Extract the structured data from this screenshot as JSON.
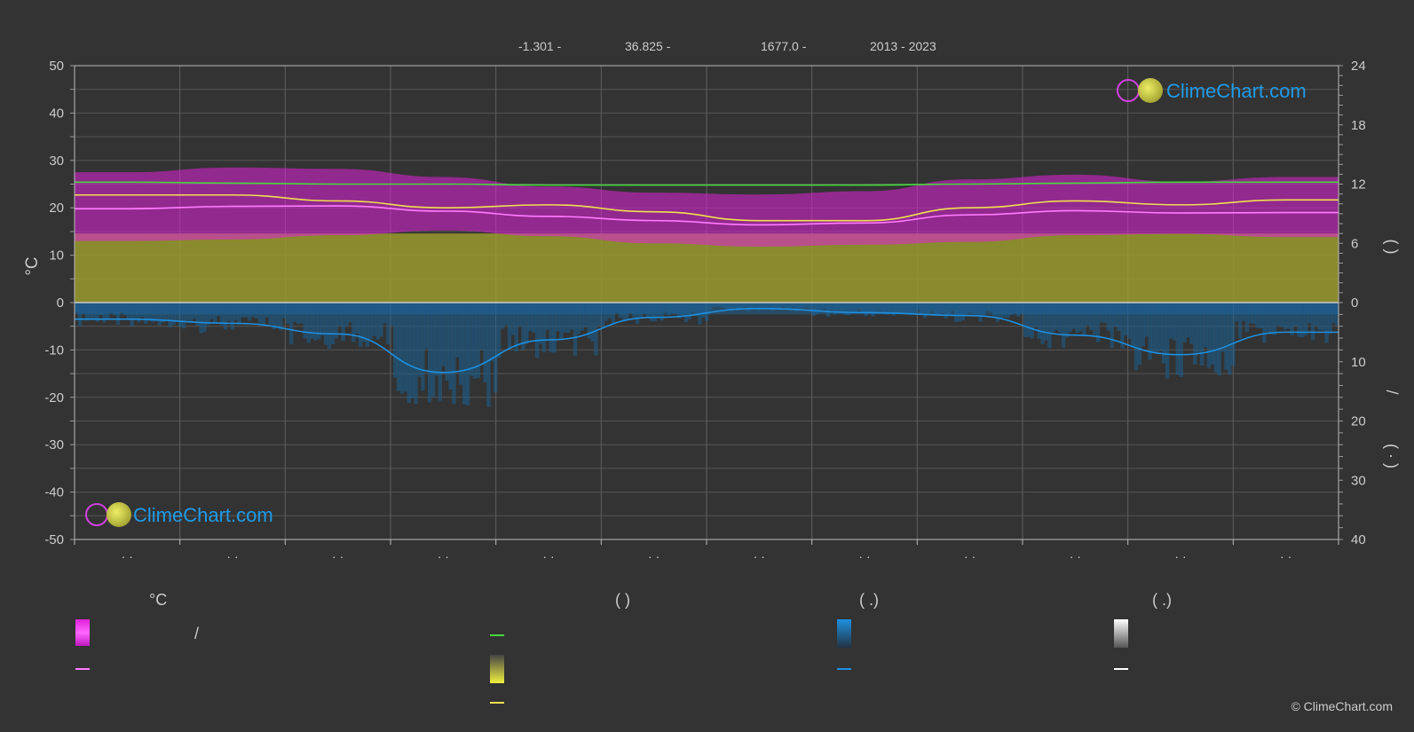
{
  "header": {
    "lat": "-1.301 -",
    "lon": "36.825 -",
    "elevation": "1677.0 -",
    "years": "2013 - 2023"
  },
  "logo_text": "ClimeChart.com",
  "copyright": "© ClimeChart.com",
  "colors": {
    "background": "#333333",
    "sunshine": "#9a9a2e",
    "daylight": "#44d93a",
    "temp_mean": "#ff7bff",
    "temp_range": "#e020d8",
    "sunshine_mean": "#f0e050",
    "precip": "#1e90e0",
    "logo_text": "#1e9be8"
  },
  "legend": {
    "temp_header": "°C",
    "sun_header": "(          )",
    "rain_header": "(   .)",
    "snow_header": "(   .)",
    "slash": "/"
  },
  "chart_data": {
    "type": "area",
    "ylabel_left": "°C",
    "ylim_left": [
      -50,
      50
    ],
    "left_ticks": [
      "50",
      "40",
      "30",
      "20",
      "10",
      "0",
      "-10",
      "-20",
      "-30",
      "-40",
      "-50"
    ],
    "right_ticks_upper": [
      "24",
      "18",
      "12",
      "6",
      "0"
    ],
    "right_ticks_lower": [
      "10",
      "20",
      "30",
      "40"
    ],
    "right_label_upper": "(   )",
    "right_label_lower": "/",
    "months": 12,
    "month_tick_labels": [
      "· ·",
      "· ·",
      "· ·",
      "· ·",
      "· ·",
      "· ·",
      "· ·",
      "· ·",
      "· ·",
      "· ·",
      "· ·",
      "· ·"
    ],
    "series": [
      {
        "key": "daylight_hours",
        "values": [
          12.2,
          12.1,
          12.0,
          12.0,
          11.9,
          11.9,
          11.9,
          11.9,
          12.0,
          12.1,
          12.2,
          12.2
        ]
      },
      {
        "key": "sunshine_hours",
        "values": [
          10.9,
          10.9,
          10.3,
          9.6,
          9.9,
          9.2,
          8.3,
          8.3,
          9.6,
          10.3,
          9.9,
          10.4
        ]
      },
      {
        "key": "temp_mean",
        "values": [
          19.8,
          20.3,
          20.4,
          19.3,
          18.2,
          17.3,
          16.4,
          16.8,
          18.5,
          19.4,
          18.9,
          19.0
        ]
      },
      {
        "key": "temp_max",
        "values": [
          27.5,
          28.5,
          28.2,
          26.5,
          24.5,
          23.2,
          22.8,
          23.5,
          26.0,
          27.0,
          25.5,
          26.5
        ]
      },
      {
        "key": "temp_min",
        "values": [
          13.0,
          13.3,
          14.2,
          15.2,
          14.0,
          12.5,
          11.8,
          12.2,
          12.8,
          14.2,
          14.5,
          13.8
        ]
      },
      {
        "key": "precipitation_mm_per_day",
        "values": [
          2.8,
          3.5,
          5.3,
          11.8,
          6.3,
          2.5,
          1.0,
          1.7,
          2.2,
          5.5,
          8.8,
          5.0
        ]
      }
    ]
  }
}
